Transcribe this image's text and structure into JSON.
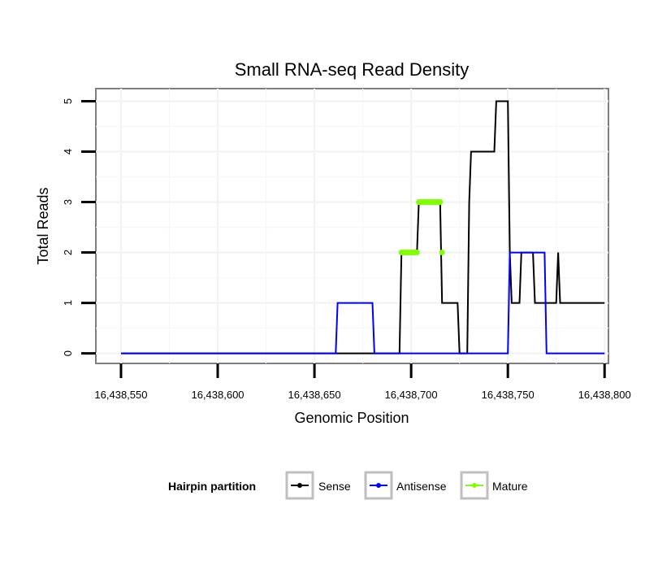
{
  "chart_data": {
    "type": "line",
    "title": "Small RNA-seq Read Density",
    "xlabel": "Genomic Position",
    "ylabel": "Total Reads",
    "xlim": [
      16438537,
      16438802
    ],
    "ylim": [
      -0.2,
      5.25
    ],
    "x_ticks": [
      16438550,
      16438600,
      16438650,
      16438700,
      16438750,
      16438800
    ],
    "x_tick_labels": [
      "16,438,550",
      "16,438,600",
      "16,438,650",
      "16,438,700",
      "16,438,750",
      "16,438,800"
    ],
    "y_ticks": [
      0,
      1,
      2,
      3,
      4,
      5
    ],
    "y_tick_labels": [
      "0",
      "1",
      "2",
      "3",
      "4",
      "5"
    ],
    "grid": true,
    "legend": {
      "title": "Hairpin partition",
      "position": "bottom",
      "entries": [
        "Sense",
        "Antisense",
        "Mature"
      ]
    },
    "series": [
      {
        "name": "Sense",
        "color": "#000000",
        "style": "line",
        "x": [
          16438550,
          16438694,
          16438695,
          16438703,
          16438704,
          16438715,
          16438716,
          16438724,
          16438725,
          16438729,
          16438730,
          16438731,
          16438743,
          16438744,
          16438745,
          16438750,
          16438751,
          16438752,
          16438756,
          16438757,
          16438763,
          16438764,
          16438775,
          16438776,
          16438777,
          16438800
        ],
        "y": [
          0,
          0,
          2,
          2,
          3,
          3,
          1,
          1,
          0,
          0,
          3,
          4,
          4,
          5,
          5,
          5,
          2,
          1,
          1,
          2,
          2,
          1,
          1,
          2,
          1,
          1
        ]
      },
      {
        "name": "Antisense",
        "color": "#0000ff",
        "style": "line",
        "x": [
          16438550,
          16438661,
          16438662,
          16438680,
          16438681,
          16438750,
          16438751,
          16438769,
          16438770,
          16438800
        ],
        "y": [
          0,
          0,
          1,
          1,
          0,
          0,
          2,
          2,
          0,
          0
        ]
      },
      {
        "name": "Mature",
        "color": "#7fff00",
        "style": "points",
        "x": [
          16438695,
          16438696,
          16438697,
          16438698,
          16438699,
          16438700,
          16438701,
          16438702,
          16438703,
          16438704,
          16438705,
          16438706,
          16438707,
          16438708,
          16438709,
          16438710,
          16438711,
          16438712,
          16438713,
          16438714,
          16438715,
          16438716
        ],
        "y": [
          2,
          2,
          2,
          2,
          2,
          2,
          2,
          2,
          2,
          3,
          3,
          3,
          3,
          3,
          3,
          3,
          3,
          3,
          3,
          3,
          3,
          2
        ]
      }
    ]
  }
}
